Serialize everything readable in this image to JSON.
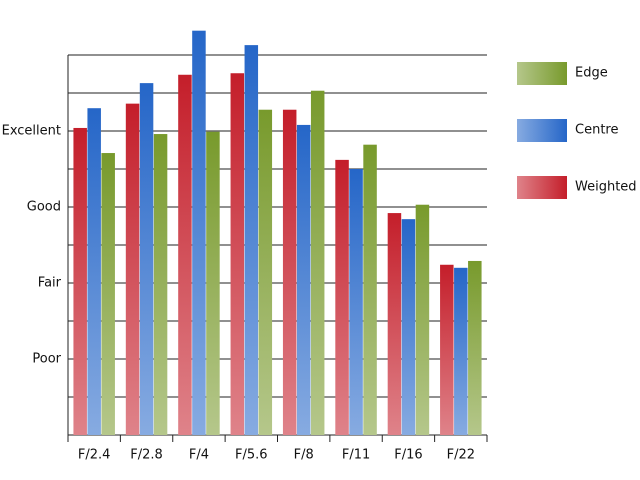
{
  "chart_data": {
    "type": "bar",
    "categories": [
      "F/2.4",
      "F/2.8",
      "F/4",
      "F/5.6",
      "F/8",
      "F/11",
      "F/16",
      "F/22"
    ],
    "series": [
      {
        "name": "Weighted",
        "color": "#c41e2a",
        "values": [
          4.04,
          4.36,
          4.74,
          4.76,
          4.28,
          3.62,
          2.92,
          2.24
        ]
      },
      {
        "name": "Centre",
        "color": "#2566c8",
        "values": [
          4.3,
          4.63,
          5.32,
          5.13,
          4.08,
          3.5,
          2.84,
          2.2
        ]
      },
      {
        "name": "Edge",
        "color": "#789a2c",
        "values": [
          3.71,
          3.96,
          3.99,
          4.28,
          4.53,
          3.82,
          3.03,
          2.29
        ]
      }
    ],
    "ylim": [
      0,
      5
    ],
    "yticks": [
      {
        "value": 1,
        "label": "Poor"
      },
      {
        "value": 2,
        "label": "Fair"
      },
      {
        "value": 3,
        "label": "Good"
      },
      {
        "value": 4,
        "label": "Excellent"
      }
    ],
    "minor_yticks": [
      0.5,
      1.5,
      2.5,
      3.5,
      4.5,
      5
    ],
    "grid": true,
    "legend": "right"
  }
}
